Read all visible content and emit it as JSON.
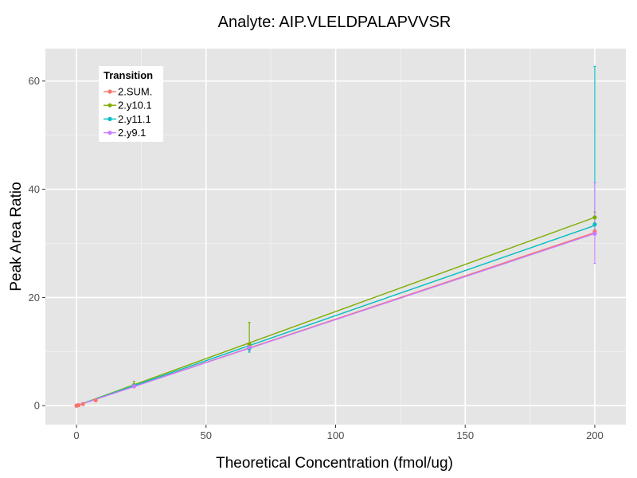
{
  "chart_data": {
    "type": "line",
    "title": "Analyte: AIP.VLELDPALAPVVSR",
    "xlabel": "Theoretical Concentration (fmol/ug)",
    "ylabel": "Peak Area Ratio",
    "xlim": [
      -12,
      212
    ],
    "ylim": [
      -3.5,
      66
    ],
    "x_ticks": [
      0,
      50,
      100,
      150,
      200
    ],
    "y_ticks": [
      0,
      20,
      40,
      60
    ],
    "grid": true,
    "legend": {
      "title": "Transition",
      "position": "top-left-inside"
    },
    "series": [
      {
        "name": "2.SUM.",
        "color": "#F8766D",
        "points": [
          {
            "x": 0,
            "y": 0.0
          },
          {
            "x": 0.3,
            "y": 0.05
          },
          {
            "x": 0.8,
            "y": 0.1
          },
          {
            "x": 2.5,
            "y": 0.3
          },
          {
            "x": 7.4,
            "y": 1.0
          },
          {
            "x": 22.2,
            "y": 3.6
          },
          {
            "x": 66.7,
            "y": 10.9
          },
          {
            "x": 200,
            "y": 32.2
          }
        ],
        "fit": [
          [
            0,
            0.0
          ],
          [
            200,
            32.0
          ]
        ],
        "error_bars": []
      },
      {
        "name": "2.y10.1",
        "color": "#7CAE00",
        "points": [
          {
            "x": 22.2,
            "y": 3.8
          },
          {
            "x": 66.7,
            "y": 11.3
          },
          {
            "x": 200,
            "y": 34.8
          }
        ],
        "fit": [
          [
            0,
            0.0
          ],
          [
            200,
            34.8
          ]
        ],
        "error_bars": [
          {
            "x": 22.2,
            "low": 3.4,
            "high": 4.5
          },
          {
            "x": 66.7,
            "low": 10.5,
            "high": 15.4
          },
          {
            "x": 200,
            "low": 33.8,
            "high": 35.8
          }
        ]
      },
      {
        "name": "2.y11.1",
        "color": "#00BFC4",
        "points": [
          {
            "x": 22.2,
            "y": 3.7
          },
          {
            "x": 66.7,
            "y": 10.6
          },
          {
            "x": 200,
            "y": 33.5
          }
        ],
        "fit": [
          [
            0,
            0.0
          ],
          [
            200,
            33.3
          ]
        ],
        "error_bars": [
          {
            "x": 22.2,
            "low": 3.4,
            "high": 4.0
          },
          {
            "x": 66.7,
            "low": 9.9,
            "high": 11.3
          },
          {
            "x": 200,
            "low": 32.5,
            "high": 62.7
          }
        ]
      },
      {
        "name": "2.y9.1",
        "color": "#C77CFF",
        "points": [
          {
            "x": 22.2,
            "y": 3.6
          },
          {
            "x": 66.7,
            "y": 10.8
          },
          {
            "x": 200,
            "y": 31.8
          }
        ],
        "fit": [
          [
            0,
            0.0
          ],
          [
            200,
            31.8
          ]
        ],
        "error_bars": [
          {
            "x": 22.2,
            "low": 3.3,
            "high": 3.9
          },
          {
            "x": 66.7,
            "low": 10.2,
            "high": 11.4
          },
          {
            "x": 200,
            "low": 26.3,
            "high": 41.2
          }
        ]
      }
    ]
  }
}
